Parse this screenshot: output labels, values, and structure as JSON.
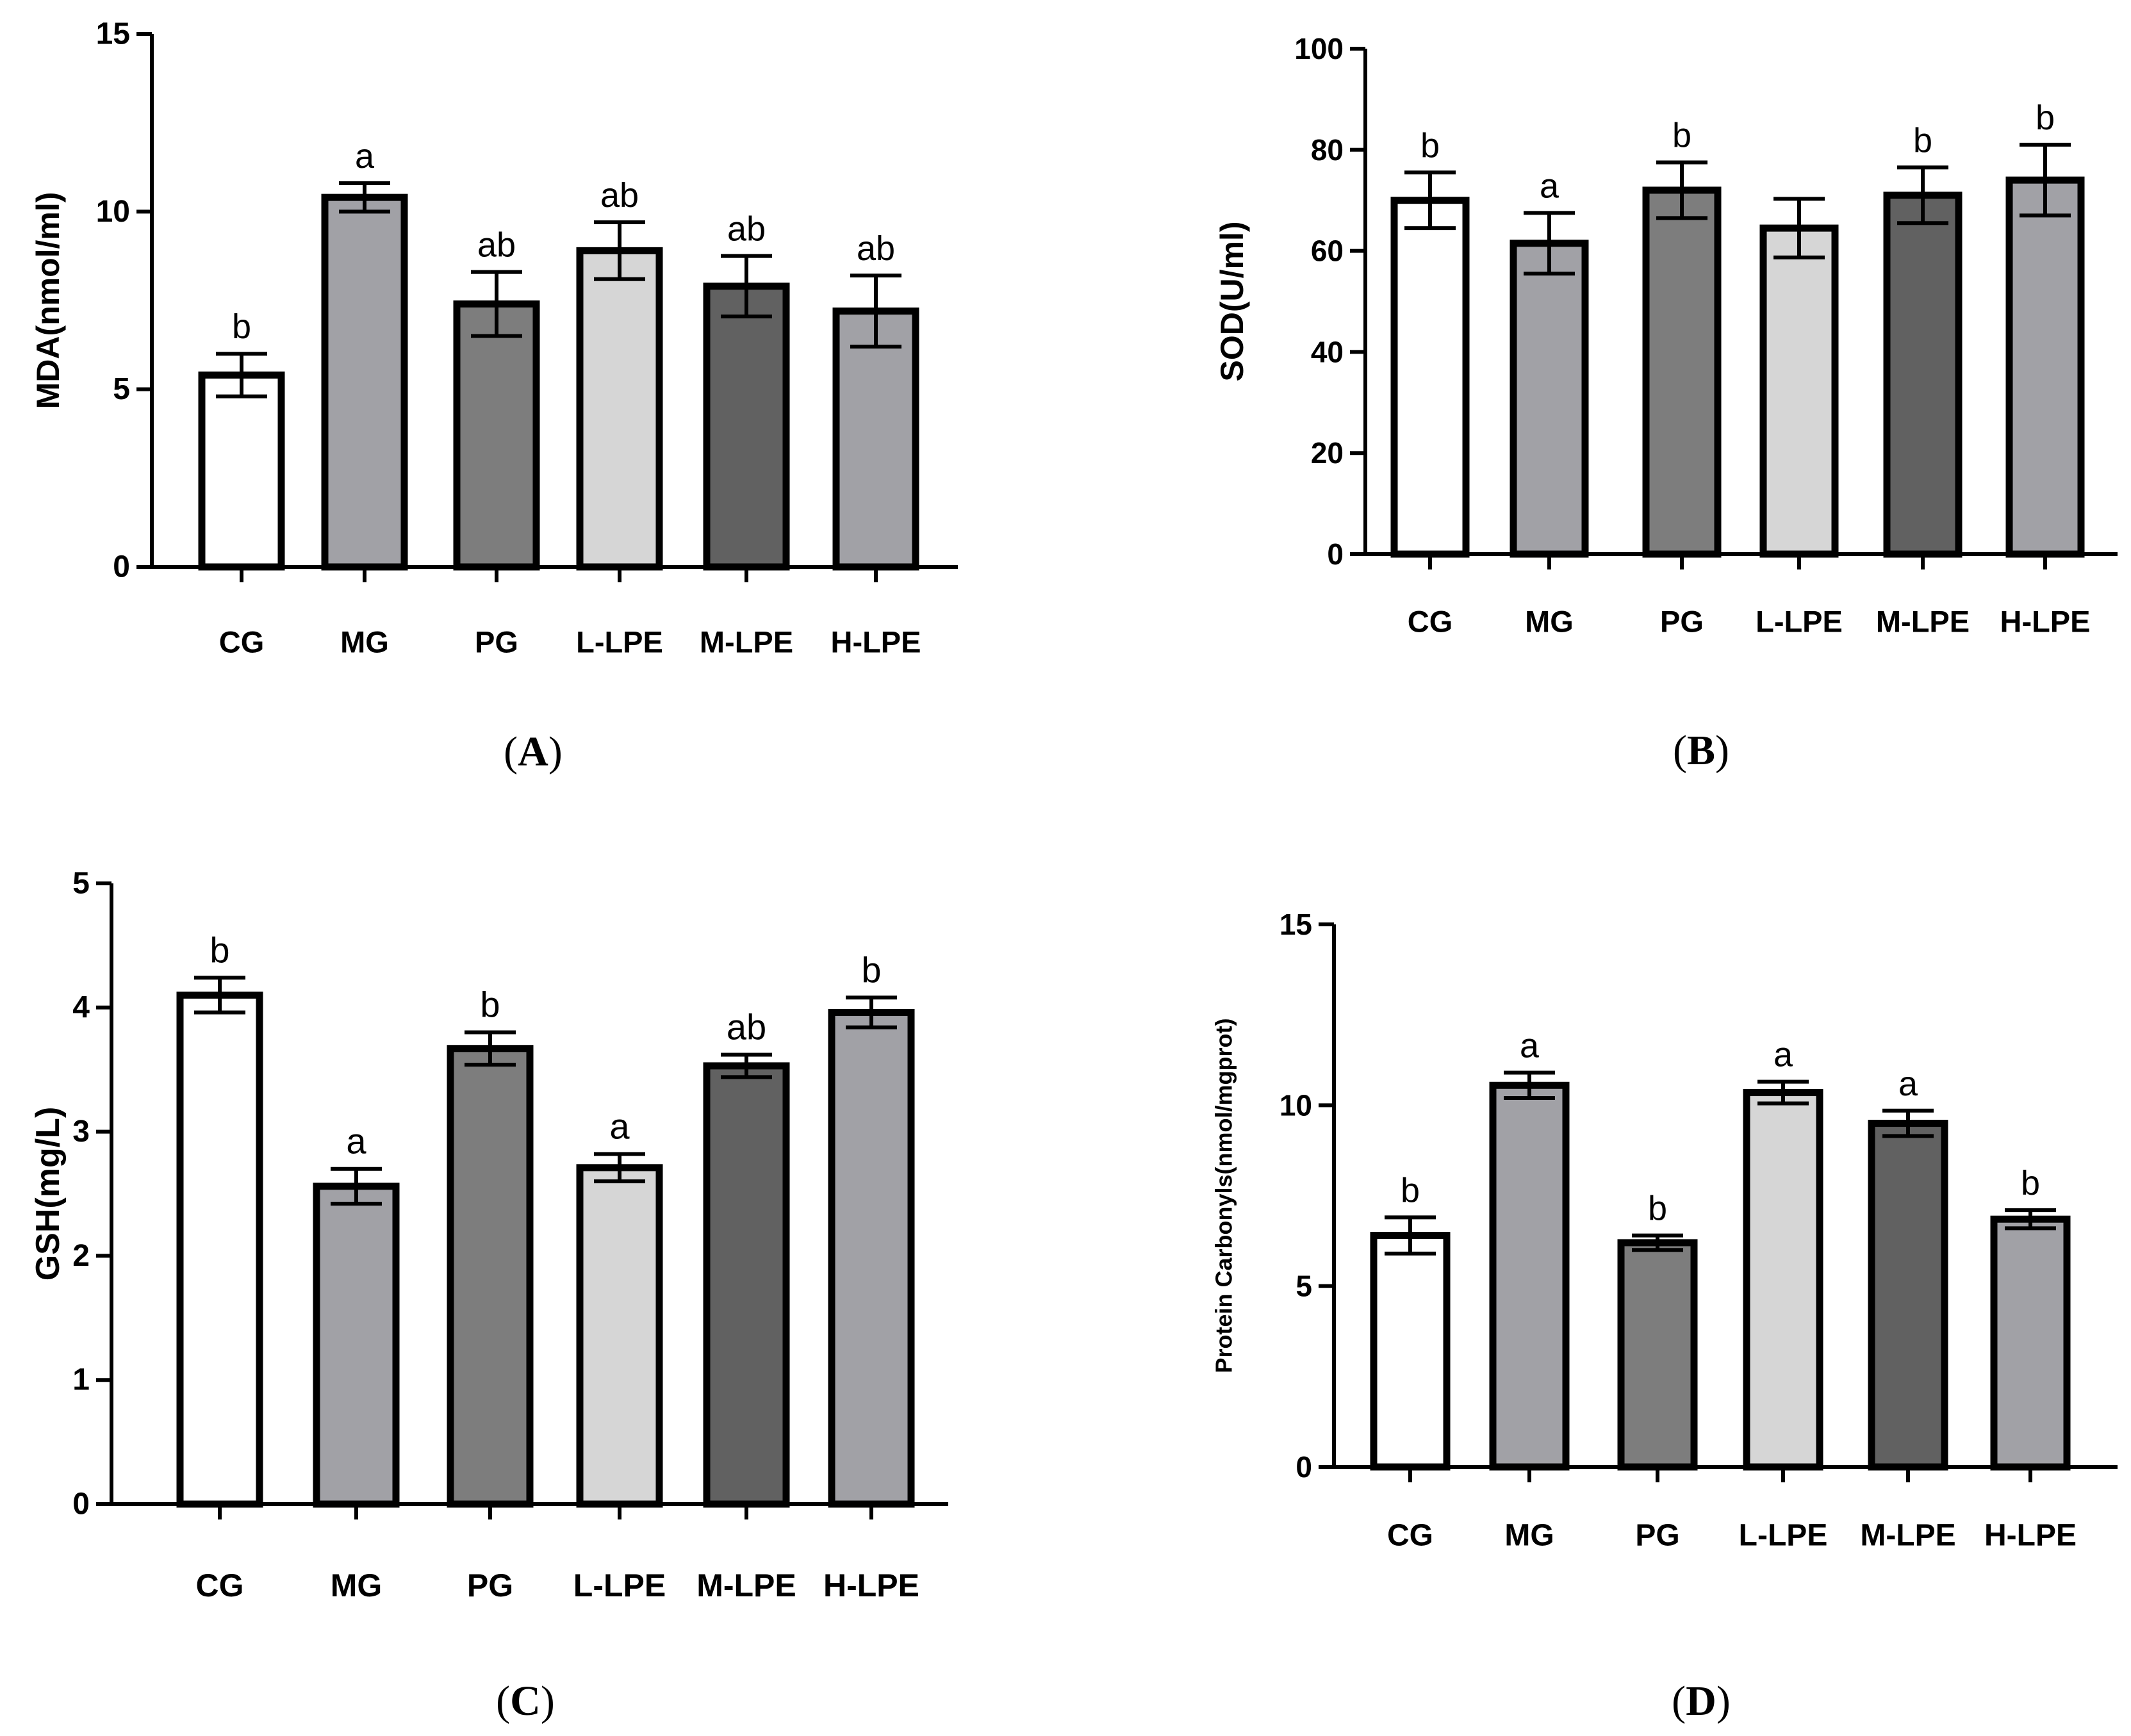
{
  "figure": {
    "panel_count": 4
  },
  "chart_data": [
    {
      "id": "A",
      "type": "bar",
      "panel_label": "(A)",
      "ylabel": "MDA(nmol/ml)",
      "xlabel": "",
      "ylim": [
        0,
        15
      ],
      "yticks": [
        0,
        5,
        10,
        15
      ],
      "categories": [
        "CG",
        "MG",
        "PG",
        "L-LPE",
        "M-LPE",
        "H-LPE"
      ],
      "values": [
        5.4,
        10.4,
        7.4,
        8.9,
        7.9,
        7.2
      ],
      "errors": [
        0.6,
        0.4,
        0.9,
        0.8,
        0.85,
        1.0
      ],
      "significance": [
        "b",
        "a",
        "ab",
        "ab",
        "ab",
        "ab"
      ],
      "bar_colors": [
        "#ffffff",
        "#a1a1a6",
        "#7d7d7d",
        "#d6d6d6",
        "#616161",
        "#a1a1a6"
      ]
    },
    {
      "id": "B",
      "type": "bar",
      "panel_label": "(B)",
      "ylabel": "SOD(U/ml)",
      "xlabel": "",
      "ylim": [
        0,
        100
      ],
      "yticks": [
        0,
        20,
        40,
        60,
        80,
        100
      ],
      "categories": [
        "CG",
        "MG",
        "PG",
        "L-LPE",
        "M-LPE",
        "H-LPE"
      ],
      "values": [
        70,
        61.5,
        72,
        64.5,
        71,
        74
      ],
      "errors": [
        5.5,
        6.0,
        5.5,
        5.8,
        5.5,
        7.0
      ],
      "significance": [
        "b",
        "a",
        "b",
        "",
        "b",
        "b"
      ],
      "bar_colors": [
        "#ffffff",
        "#a1a1a6",
        "#7d7d7d",
        "#d6d6d6",
        "#616161",
        "#a1a1a6"
      ]
    },
    {
      "id": "C",
      "type": "bar",
      "panel_label": "(C)",
      "ylabel": "GSH(mg/L)",
      "xlabel": "",
      "ylim": [
        0,
        5
      ],
      "yticks": [
        0,
        1,
        2,
        3,
        4,
        5
      ],
      "categories": [
        "CG",
        "MG",
        "PG",
        "L-LPE",
        "M-LPE",
        "H-LPE"
      ],
      "values": [
        4.1,
        2.56,
        3.67,
        2.71,
        3.53,
        3.96
      ],
      "errors": [
        0.14,
        0.14,
        0.13,
        0.11,
        0.09,
        0.12
      ],
      "significance": [
        "b",
        "a",
        "b",
        "a",
        "ab",
        "b"
      ],
      "bar_colors": [
        "#ffffff",
        "#a1a1a6",
        "#7d7d7d",
        "#d6d6d6",
        "#616161",
        "#a1a1a6"
      ]
    },
    {
      "id": "D",
      "type": "bar",
      "panel_label": "(D)",
      "ylabel": "Protein Carbonyls(nmol/mgprot)",
      "xlabel": "",
      "ylim": [
        0,
        15
      ],
      "yticks": [
        0,
        5,
        10,
        15
      ],
      "categories": [
        "CG",
        "MG",
        "PG",
        "L-LPE",
        "M-LPE",
        "H-LPE"
      ],
      "values": [
        6.4,
        10.55,
        6.2,
        10.35,
        9.5,
        6.85
      ],
      "errors": [
        0.5,
        0.35,
        0.2,
        0.3,
        0.35,
        0.25
      ],
      "significance": [
        "b",
        "a",
        "b",
        "a",
        "a",
        "b"
      ],
      "bar_colors": [
        "#ffffff",
        "#a1a1a6",
        "#7d7d7d",
        "#d6d6d6",
        "#616161",
        "#a1a1a6"
      ]
    }
  ]
}
